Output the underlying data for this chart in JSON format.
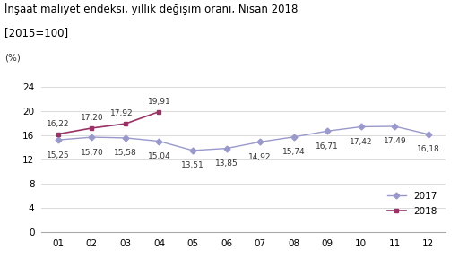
{
  "title_line1": "İnşaat maliyet endeksi, yıllık değişim oranı, Nisan 2018",
  "title_line2": "[2015=100]",
  "pct_label": "(%)",
  "months": [
    "01",
    "02",
    "03",
    "04",
    "05",
    "06",
    "07",
    "08",
    "09",
    "10",
    "11",
    "12"
  ],
  "series_2017": [
    15.25,
    15.7,
    15.58,
    15.04,
    13.51,
    13.85,
    14.92,
    15.74,
    16.71,
    17.42,
    17.49,
    16.18
  ],
  "series_2018": [
    16.22,
    17.2,
    17.92,
    19.91
  ],
  "color_2017": "#9999cc",
  "color_2018": "#993366",
  "marker_2017": "D",
  "marker_2018": "s",
  "ylim": [
    0,
    26
  ],
  "yticks": [
    0,
    4,
    8,
    12,
    16,
    20,
    24
  ],
  "legend_2017": "2017",
  "legend_2018": "2018",
  "label_fontsize": 6.5,
  "title_fontsize": 8.5,
  "pct_fontsize": 7.5,
  "bg_color": "#ffffff"
}
